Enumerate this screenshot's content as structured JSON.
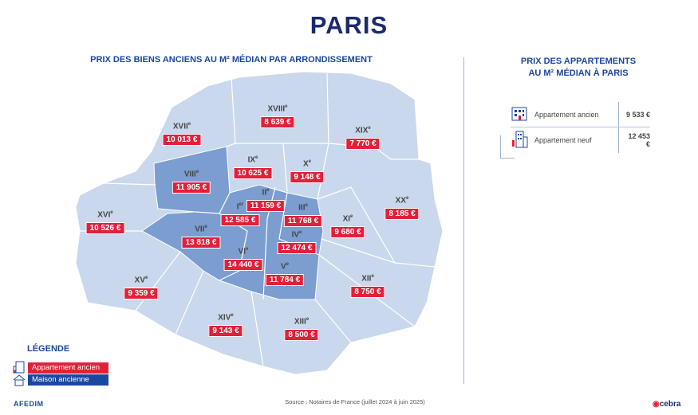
{
  "title": "PARIS",
  "map_title": "PRIX DES BIENS ANCIENS AU M² MÉDIAN PAR ARRONDISSEMENT",
  "arrondissements": [
    {
      "numeral": "XVII",
      "suffix": "e",
      "price": "10 013 €",
      "type": "appartement"
    },
    {
      "numeral": "XVIII",
      "suffix": "e",
      "price": "8 639 €",
      "type": "appartement"
    },
    {
      "numeral": "XIX",
      "suffix": "e",
      "price": "7 770 €",
      "type": "appartement"
    },
    {
      "numeral": "IX",
      "suffix": "e",
      "price": "10 625 €",
      "type": "appartement"
    },
    {
      "numeral": "X",
      "suffix": "e",
      "price": "9 148 €",
      "type": "appartement"
    },
    {
      "numeral": "VIII",
      "suffix": "e",
      "price": "11 905 €",
      "type": "appartement"
    },
    {
      "numeral": "II",
      "suffix": "e",
      "price": "11 159 €",
      "type": "appartement"
    },
    {
      "numeral": "I",
      "suffix": "er",
      "price": "12 585 €",
      "type": "appartement"
    },
    {
      "numeral": "III",
      "suffix": "e",
      "price": "11 768 €",
      "type": "appartement"
    },
    {
      "numeral": "XVI",
      "suffix": "e",
      "price": "10 526 €",
      "type": "appartement"
    },
    {
      "numeral": "XI",
      "suffix": "e",
      "price": "9 680 €",
      "type": "appartement"
    },
    {
      "numeral": "XX",
      "suffix": "e",
      "price": "8 185 €",
      "type": "appartement"
    },
    {
      "numeral": "VII",
      "suffix": "e",
      "price": "13 818 €",
      "type": "appartement"
    },
    {
      "numeral": "IV",
      "suffix": "e",
      "price": "12 474 €",
      "type": "appartement"
    },
    {
      "numeral": "VI",
      "suffix": "e",
      "price": "14 440 €",
      "type": "appartement"
    },
    {
      "numeral": "V",
      "suffix": "e",
      "price": "11 784 €",
      "type": "appartement"
    },
    {
      "numeral": "XV",
      "suffix": "e",
      "price": "9 359 €",
      "type": "appartement"
    },
    {
      "numeral": "XII",
      "suffix": "e",
      "price": "8 750 €",
      "type": "appartement"
    },
    {
      "numeral": "XIV",
      "suffix": "e",
      "price": "9 143 €",
      "type": "appartement"
    },
    {
      "numeral": "XIII",
      "suffix": "e",
      "price": "8 500 €",
      "type": "appartement"
    }
  ],
  "right_panel": {
    "title_line1": "PRIX DES APPARTEMENTS",
    "title_line2": "AU M² MÉDIAN À PARIS",
    "rows": [
      {
        "label": "Appartement ancien",
        "value": "9 533 €",
        "icon": "old-building-icon"
      },
      {
        "label": "Appartement neuf",
        "value": "12 453 €",
        "icon": "new-building-icon"
      }
    ]
  },
  "legend": {
    "title": "LÉGENDE",
    "items": [
      {
        "label": "Appartement ancien",
        "color": "#e2203a",
        "icon": "building-icon"
      },
      {
        "label": "Maison ancienne",
        "color": "#1a47a0",
        "icon": "house-icon"
      }
    ]
  },
  "colors": {
    "map_light": "#c9d8ec",
    "map_dark": "#7b9dd0",
    "price_red": "#e2203a",
    "title_navy": "#1a2a6c"
  },
  "source": "Source : Notaires de France (juillet 2024 à juin 2025)",
  "logo_left": "AFEDIM",
  "logo_right": "cebra"
}
